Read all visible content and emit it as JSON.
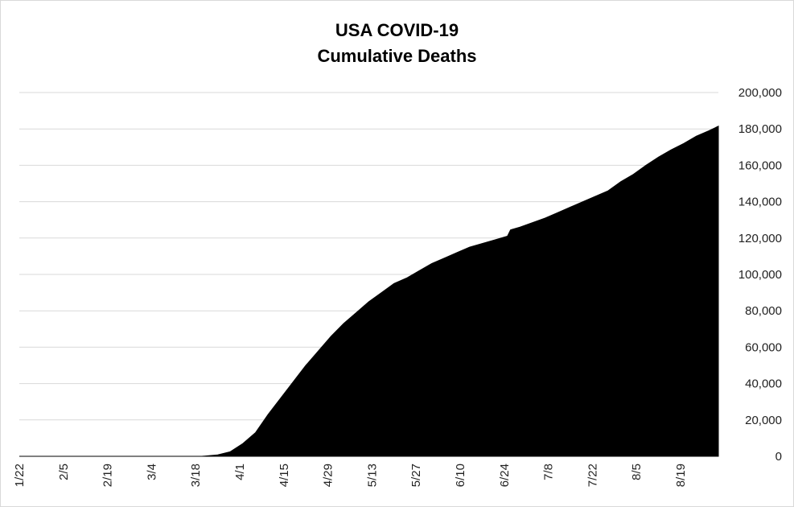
{
  "chart_data": {
    "type": "area",
    "title": [
      "USA COVID-19",
      "Cumulative Deaths"
    ],
    "xlabel": "",
    "ylabel": "",
    "y_axis_side": "right",
    "ylim": [
      0,
      200000
    ],
    "yticks": [
      0,
      20000,
      40000,
      60000,
      80000,
      100000,
      120000,
      140000,
      160000,
      180000,
      200000
    ],
    "ytick_labels": [
      "0",
      "20,000",
      "40,000",
      "60,000",
      "80,000",
      "100,000",
      "120,000",
      "140,000",
      "160,000",
      "180,000",
      "200,000"
    ],
    "xlim": [
      "1/22",
      "8/31"
    ],
    "xtick_labels": [
      "1/22",
      "2/5",
      "2/19",
      "3/4",
      "3/18",
      "4/1",
      "4/15",
      "4/29",
      "5/13",
      "5/27",
      "6/10",
      "6/24",
      "7/8",
      "7/22",
      "8/5",
      "8/19"
    ],
    "grid": "horizontal",
    "legend": "none",
    "fill_color": "#000000",
    "x": [
      "1/22",
      "3/20",
      "3/25",
      "3/29",
      "4/2",
      "4/6",
      "4/10",
      "4/14",
      "4/18",
      "4/22",
      "4/26",
      "4/30",
      "5/4",
      "5/8",
      "5/12",
      "5/16",
      "5/20",
      "5/24",
      "5/28",
      "6/1",
      "6/5",
      "6/9",
      "6/13",
      "6/17",
      "6/21",
      "6/25",
      "6/26",
      "6/29",
      "7/3",
      "7/7",
      "7/11",
      "7/15",
      "7/19",
      "7/23",
      "7/27",
      "7/31",
      "8/4",
      "8/8",
      "8/12",
      "8/16",
      "8/20",
      "8/24",
      "8/28",
      "8/31"
    ],
    "values": [
      0,
      0,
      800,
      2500,
      7000,
      13000,
      23000,
      32000,
      41000,
      50000,
      58000,
      66000,
      73000,
      79000,
      85000,
      90000,
      95000,
      98000,
      102000,
      106000,
      109000,
      112000,
      115000,
      117000,
      119000,
      121000,
      124500,
      126000,
      128500,
      131000,
      134000,
      137000,
      140000,
      143000,
      146000,
      151000,
      155000,
      160000,
      164500,
      168500,
      172000,
      176000,
      179000,
      181500
    ]
  }
}
